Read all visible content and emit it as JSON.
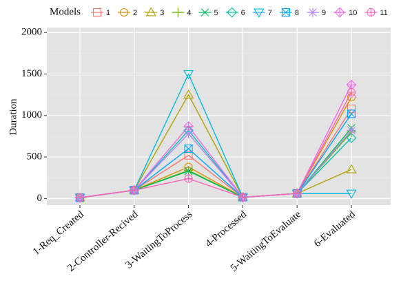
{
  "chart_data": {
    "type": "line",
    "y_label": "Duration",
    "legend_title": "Models",
    "categories": [
      "1-Req_Created",
      "2-Controller-Recived",
      "3-WaitingToProcess",
      "4-Processed",
      "5-WaitingToEvaluate",
      "6-Evaluated"
    ],
    "series": [
      {
        "name": "1",
        "color": "#F8766D",
        "marker": "square",
        "values": [
          10,
          100,
          520,
          15,
          60,
          1080
        ]
      },
      {
        "name": "2",
        "color": "#DB8E00",
        "marker": "circle",
        "values": [
          10,
          100,
          380,
          15,
          60,
          1220
        ]
      },
      {
        "name": "3",
        "color": "#AEA200",
        "marker": "triangle-up",
        "values": [
          10,
          100,
          1250,
          15,
          60,
          350
        ]
      },
      {
        "name": "4",
        "color": "#64B200",
        "marker": "plus",
        "values": [
          10,
          100,
          340,
          15,
          60,
          800
        ]
      },
      {
        "name": "5",
        "color": "#00BD5C",
        "marker": "cross",
        "values": [
          10,
          100,
          330,
          15,
          60,
          850
        ]
      },
      {
        "name": "6",
        "color": "#00C1A7",
        "marker": "diamond",
        "values": [
          10,
          100,
          820,
          15,
          60,
          730
        ]
      },
      {
        "name": "7",
        "color": "#00BADE",
        "marker": "triangle-down",
        "values": [
          10,
          100,
          1500,
          15,
          60,
          60
        ]
      },
      {
        "name": "8",
        "color": "#00A6FF",
        "marker": "square-cross",
        "values": [
          10,
          100,
          600,
          15,
          60,
          1020
        ]
      },
      {
        "name": "9",
        "color": "#B385FF",
        "marker": "asterisk",
        "values": [
          10,
          100,
          780,
          15,
          60,
          820
        ]
      },
      {
        "name": "10",
        "color": "#EF67EB",
        "marker": "diamond-plus",
        "values": [
          10,
          100,
          870,
          15,
          60,
          1370
        ]
      },
      {
        "name": "11",
        "color": "#FF63B6",
        "marker": "circle-plus",
        "values": [
          10,
          100,
          240,
          15,
          60,
          1280
        ]
      }
    ],
    "ylim": [
      -80,
      2060
    ],
    "yticks": [
      0,
      500,
      1000,
      1500,
      2000
    ],
    "grid": true
  }
}
